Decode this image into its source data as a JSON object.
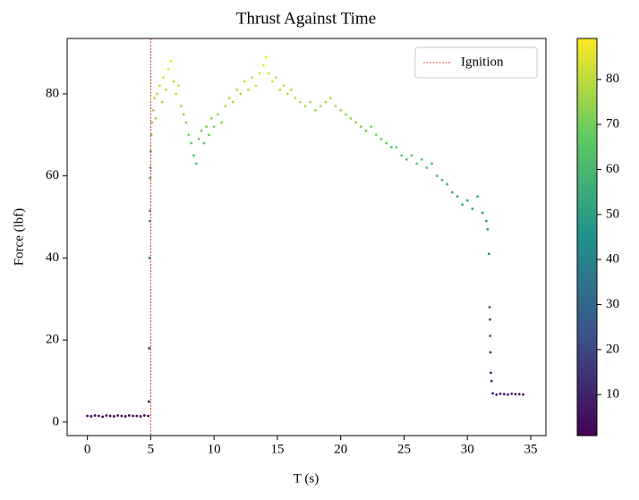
{
  "chart_data": {
    "type": "scatter",
    "title": "Thrust Against Time",
    "x_label": "T (s)",
    "y_label": "Force (lbf)",
    "x": [
      0,
      0.3,
      0.6,
      0.9,
      1.2,
      1.5,
      1.8,
      2.1,
      2.4,
      2.7,
      3.0,
      3.3,
      3.6,
      3.9,
      4.2,
      4.5,
      4.8,
      4.85,
      4.88,
      4.9,
      4.92,
      4.93,
      4.95,
      4.97,
      5.0,
      5.05,
      5.1,
      5.2,
      5.3,
      5.4,
      5.5,
      5.7,
      5.9,
      6.0,
      6.2,
      6.4,
      6.6,
      6.8,
      7.0,
      7.2,
      7.4,
      7.6,
      7.8,
      8.0,
      8.2,
      8.4,
      8.6,
      8.8,
      9.0,
      9.2,
      9.4,
      9.6,
      9.8,
      10.0,
      10.3,
      10.6,
      10.9,
      11.2,
      11.5,
      11.8,
      12.1,
      12.4,
      12.7,
      13.0,
      13.3,
      13.6,
      13.9,
      14.1,
      14.3,
      14.6,
      14.9,
      15.2,
      15.5,
      15.8,
      16.1,
      16.4,
      16.8,
      17.2,
      17.6,
      18.0,
      18.4,
      18.8,
      19.2,
      19.6,
      20.0,
      20.4,
      20.8,
      21.2,
      21.6,
      22.0,
      22.4,
      22.8,
      23.2,
      23.6,
      24.0,
      24.4,
      24.8,
      25.2,
      25.6,
      26.0,
      26.4,
      26.8,
      27.2,
      27.6,
      28.0,
      28.4,
      28.8,
      29.2,
      29.6,
      30.0,
      30.4,
      30.8,
      31.2,
      31.5,
      31.6,
      31.7,
      31.75,
      31.78,
      31.8,
      31.82,
      31.85,
      31.9,
      32.0,
      32.3,
      32.6,
      32.9,
      33.2,
      33.5,
      33.8,
      34.1,
      34.4
    ],
    "y": [
      1.5,
      1.4,
      1.6,
      1.5,
      1.3,
      1.6,
      1.5,
      1.4,
      1.6,
      1.5,
      1.4,
      1.6,
      1.5,
      1.5,
      1.4,
      1.6,
      1.5,
      5,
      18,
      40,
      49,
      51.5,
      59.5,
      62,
      66,
      70,
      73,
      76,
      79,
      74,
      80,
      82,
      78,
      84,
      81,
      86,
      88,
      83,
      80,
      82,
      77,
      75,
      73,
      70,
      68,
      65,
      63,
      69,
      71,
      68,
      72,
      70,
      74,
      72,
      75,
      73,
      77,
      79,
      78,
      81,
      80,
      83,
      81,
      84,
      82,
      85,
      87,
      89,
      85,
      83,
      84,
      81,
      82,
      80,
      81,
      79,
      78,
      77,
      78,
      76,
      77,
      78,
      79,
      77,
      76,
      75,
      74,
      73,
      72,
      71,
      72,
      70,
      69,
      68,
      67,
      67,
      65,
      64,
      65,
      63,
      64,
      62,
      63,
      60,
      59,
      58,
      56,
      55,
      53,
      54,
      52,
      55,
      51,
      49,
      47,
      41,
      28,
      25,
      21,
      17,
      12,
      10,
      7,
      6.7,
      6.9,
      6.8,
      6.7,
      6.9,
      6.8,
      6.8,
      6.7
    ],
    "colormap": "viridis",
    "clim": [
      0.9,
      89.1
    ],
    "cticks": [
      10,
      20,
      30,
      40,
      50,
      60,
      70,
      80
    ],
    "xlim": [
      -1.6,
      36.2
    ],
    "xticks": [
      0,
      5,
      10,
      15,
      20,
      25,
      30,
      35
    ],
    "ylim": [
      -3.3,
      93.5
    ],
    "yticks": [
      0,
      20,
      40,
      60,
      80
    ],
    "vline": {
      "x": 5,
      "label": "Ignition",
      "color": "#e00000"
    },
    "legend": "upper right"
  }
}
